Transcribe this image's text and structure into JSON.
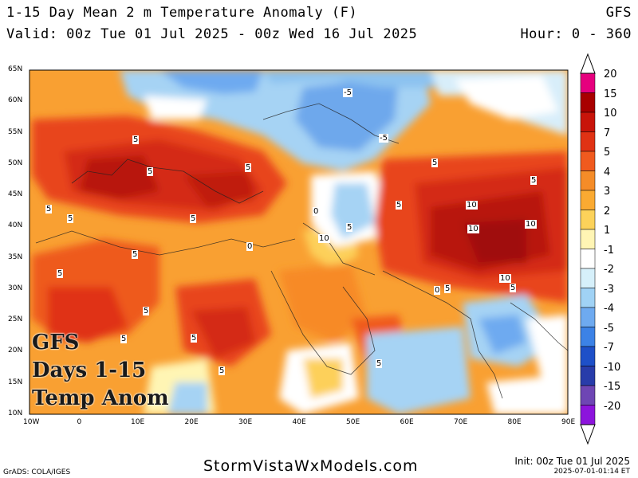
{
  "header": {
    "title": "1-15 Day Mean 2 m Temperature Anomaly (F)",
    "model": "GFS",
    "valid": "Valid: 00z Tue 01 Jul 2025 - 00z Wed 16 Jul 2025",
    "hours": "Hour: 0 - 360"
  },
  "overlay": [
    "GFS",
    "Days 1-15",
    "Temp Anom"
  ],
  "lat_labels": [
    "65N",
    "60N",
    "55N",
    "50N",
    "45N",
    "40N",
    "35N",
    "30N",
    "25N",
    "20N",
    "15N",
    "10N"
  ],
  "lon_labels": [
    "10W",
    "0",
    "10E",
    "20E",
    "30E",
    "40E",
    "50E",
    "60E",
    "70E",
    "80E",
    "90E"
  ],
  "colorbar": {
    "levels": [
      "20",
      "15",
      "10",
      "7",
      "5",
      "4",
      "3",
      "2",
      "1",
      "-1",
      "-2",
      "-3",
      "-4",
      "-5",
      "-7",
      "-10",
      "-15",
      "-20"
    ],
    "colors": [
      "#e6007e",
      "#a80000",
      "#c8140a",
      "#e03214",
      "#f05a1e",
      "#f58c28",
      "#faaa32",
      "#fcd25a",
      "#fff5b4",
      "#ffffff",
      "#d6f0fa",
      "#a0d2f5",
      "#6eaaf0",
      "#3c82e6",
      "#1e50c8",
      "#283caa",
      "#6e46b4",
      "#8c14dc"
    ]
  },
  "contour_labels": [
    "-5",
    "-5",
    "5",
    "5",
    "5",
    "5",
    "5",
    "5",
    "5",
    "5",
    "5",
    "5",
    "5",
    "5",
    "5",
    "5",
    "5",
    "5",
    "5",
    "5",
    "5",
    "10",
    "10",
    "10",
    "10",
    "10",
    "0",
    "0",
    "0"
  ],
  "footer": {
    "left": "GrADS: COLA/IGES",
    "site": "StormVistaWxModels.com",
    "init": "Init: 00z Tue 01 Jul 2025",
    "stamp": "2025-07-01-01:14  ET"
  }
}
